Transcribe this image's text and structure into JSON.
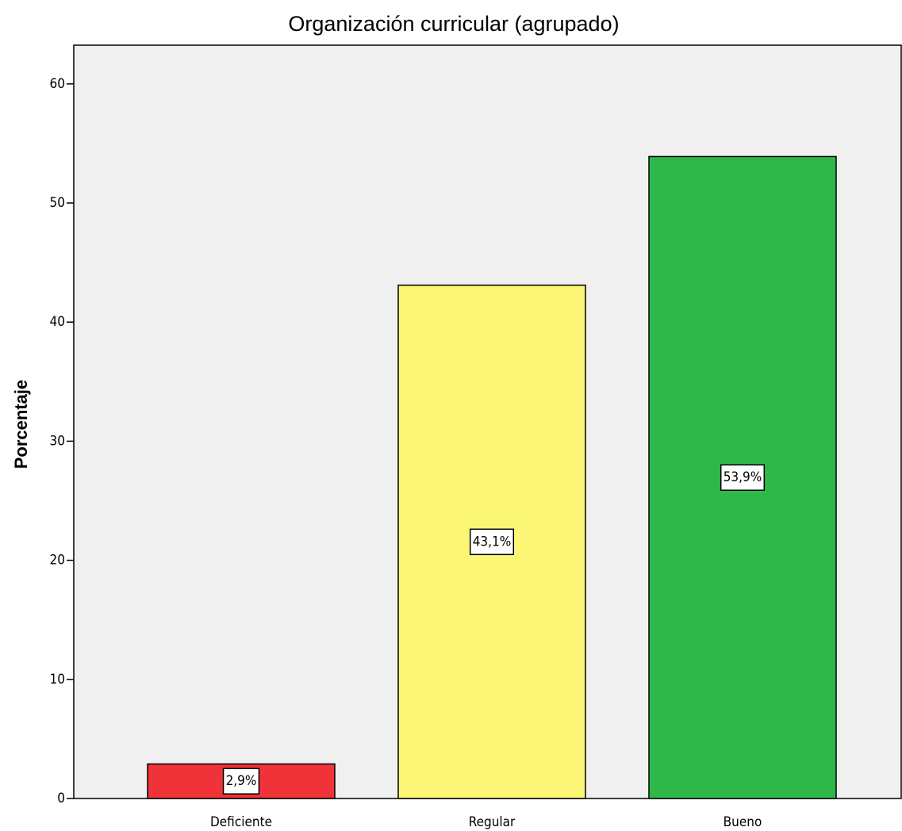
{
  "chart_data": {
    "type": "bar",
    "title": "Organización curricular (agrupado)",
    "y_label": "Porcentaje",
    "categories": [
      "Deficiente",
      "Regular",
      "Bueno"
    ],
    "values": [
      2.9,
      43.1,
      53.9
    ],
    "value_labels": [
      "2,9%",
      "43,1%",
      "53,9%"
    ],
    "colors": [
      "#f03239",
      "#fbf676",
      "#2fb84a"
    ],
    "ylim": [
      0,
      63.25
    ],
    "yticks": [
      0,
      10,
      20,
      30,
      40,
      50,
      60
    ],
    "grid": false
  }
}
